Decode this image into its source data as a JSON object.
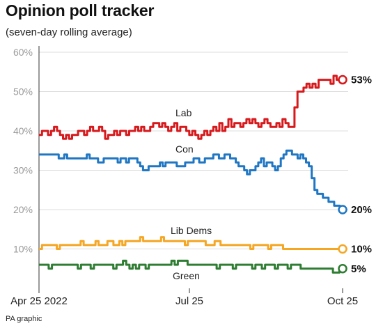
{
  "title": "Opinion poll tracker",
  "subtitle": "(seven-day rolling average)",
  "credit": "PA graphic",
  "chart_data": {
    "type": "line",
    "title": "Opinion poll tracker",
    "subtitle": "(seven-day rolling average)",
    "xlabel": "",
    "ylabel": "",
    "ylim": [
      0,
      60
    ],
    "y_ticks": [
      "60%",
      "50%",
      "40%",
      "30%",
      "20%",
      "10%"
    ],
    "x_ticks": [
      "Apr 25 2022",
      "Jul 25",
      "Oct 25"
    ],
    "grid": true,
    "legend": "inline labels",
    "series": [
      {
        "name": "Lab",
        "color": "#d7191c",
        "end_label": "53%",
        "values": [
          39,
          40,
          40,
          39,
          40,
          41,
          40,
          39,
          38,
          39,
          38,
          39,
          39,
          40,
          40,
          39,
          40,
          41,
          40,
          40,
          41,
          40,
          38,
          39,
          39,
          40,
          39,
          40,
          40,
          39,
          40,
          40,
          41,
          40,
          41,
          40,
          40,
          41,
          42,
          42,
          41,
          42,
          41,
          40,
          41,
          42,
          40,
          41,
          41,
          40,
          39,
          40,
          39,
          38,
          39,
          40,
          39,
          40,
          41,
          40,
          42,
          40,
          41,
          43,
          41,
          42,
          42,
          41,
          42,
          43,
          42,
          43,
          42,
          41,
          42,
          43,
          42,
          41,
          41,
          42,
          41,
          43,
          42,
          41,
          41,
          46,
          50,
          50,
          51,
          52,
          51,
          52,
          51,
          53,
          53,
          53,
          53,
          52,
          54,
          53,
          53
        ]
      },
      {
        "name": "Con",
        "color": "#1f77c4",
        "end_label": "20%",
        "values": [
          34,
          34,
          34,
          34,
          34,
          34,
          34,
          33,
          33,
          34,
          33,
          33,
          33,
          33,
          33,
          33,
          33,
          34,
          33,
          33,
          33,
          32,
          32,
          33,
          33,
          33,
          33,
          33,
          32,
          33,
          33,
          32,
          33,
          33,
          33,
          32,
          31,
          30,
          30,
          31,
          31,
          31,
          31,
          32,
          31,
          32,
          32,
          32,
          32,
          31,
          31,
          31,
          32,
          32,
          32,
          33,
          33,
          32,
          32,
          33,
          33,
          33,
          34,
          34,
          33,
          33,
          34,
          34,
          33,
          33,
          32,
          31,
          31,
          30,
          29,
          30,
          30,
          31,
          32,
          33,
          31,
          32,
          32,
          31,
          30,
          31,
          33,
          34,
          35,
          35,
          34,
          34,
          33,
          34,
          33,
          32,
          31,
          28,
          25,
          24,
          24,
          23,
          23,
          22,
          22,
          21,
          21,
          20
        ]
      },
      {
        "name": "Lib Dems",
        "color": "#f5a623",
        "end_label": "10%",
        "values": [
          10,
          11,
          11,
          11,
          11,
          11,
          10,
          11,
          11,
          11,
          11,
          11,
          11,
          11,
          12,
          11,
          11,
          11,
          11,
          12,
          11,
          11,
          11,
          12,
          12,
          11,
          11,
          12,
          11,
          12,
          12,
          12,
          12,
          12,
          13,
          12,
          12,
          12,
          12,
          12,
          12,
          13,
          12,
          12,
          12,
          12,
          12,
          12,
          12,
          11,
          12,
          12,
          12,
          12,
          12,
          12,
          11,
          11,
          11,
          12,
          12,
          11,
          11,
          11,
          11,
          11,
          11,
          11,
          11,
          11,
          11,
          10,
          11,
          11,
          11,
          11,
          11,
          10,
          11,
          11,
          11,
          11,
          10,
          10,
          10,
          10,
          10,
          10,
          10,
          10,
          10,
          10,
          10,
          10,
          10,
          10,
          10,
          10,
          10,
          10,
          10,
          10
        ]
      },
      {
        "name": "Green",
        "color": "#2e7d32",
        "end_label": "5%",
        "values": [
          6,
          6,
          6,
          5,
          6,
          6,
          6,
          6,
          6,
          6,
          6,
          6,
          5,
          6,
          6,
          6,
          5,
          6,
          6,
          6,
          6,
          6,
          6,
          5,
          6,
          6,
          7,
          6,
          5,
          6,
          5,
          6,
          6,
          5,
          6,
          6,
          6,
          6,
          6,
          6,
          6,
          7,
          6,
          7,
          7,
          7,
          6,
          6,
          6,
          6,
          6,
          6,
          6,
          6,
          6,
          5,
          6,
          6,
          6,
          6,
          5,
          6,
          6,
          6,
          6,
          6,
          5,
          6,
          6,
          5,
          6,
          6,
          6,
          5,
          6,
          6,
          6,
          5,
          6,
          6,
          6,
          5,
          5,
          5,
          5,
          5,
          5,
          5,
          5,
          5,
          5,
          4,
          4,
          5
        ]
      }
    ]
  }
}
